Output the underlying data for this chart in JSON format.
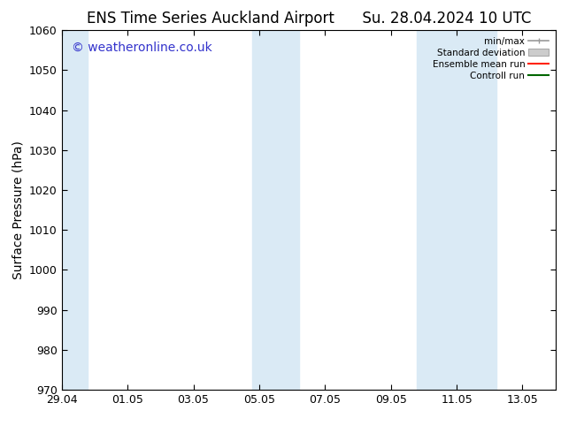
{
  "title_left": "ENS Time Series Auckland Airport",
  "title_right": "Su. 28.04.2024 10 UTC",
  "ylabel": "Surface Pressure (hPa)",
  "ylim": [
    970,
    1060
  ],
  "yticks": [
    970,
    980,
    990,
    1000,
    1010,
    1020,
    1030,
    1040,
    1050,
    1060
  ],
  "xtick_labels": [
    "29.04",
    "01.05",
    "03.05",
    "05.05",
    "07.05",
    "09.05",
    "11.05",
    "13.05"
  ],
  "xtick_positions": [
    0,
    2,
    4,
    6,
    8,
    10,
    12,
    14
  ],
  "xlim": [
    0,
    15
  ],
  "shade_bands": [
    {
      "x_start": -0.1,
      "x_end": 0.8
    },
    {
      "x_start": 5.8,
      "x_end": 7.2
    },
    {
      "x_start": 10.8,
      "x_end": 13.2
    }
  ],
  "shade_color": "#daeaf5",
  "background_color": "#ffffff",
  "watermark_text": "© weatheronline.co.uk",
  "watermark_color": "#3333cc",
  "legend_labels": [
    "min/max",
    "Standard deviation",
    "Ensemble mean run",
    "Controll run"
  ],
  "legend_colors_line": [
    "#999999",
    "#bbbbbb",
    "#ff0000",
    "#008000"
  ],
  "grid_color": "#dddddd",
  "title_fontsize": 12,
  "axis_label_fontsize": 10,
  "tick_fontsize": 9,
  "watermark_fontsize": 10
}
